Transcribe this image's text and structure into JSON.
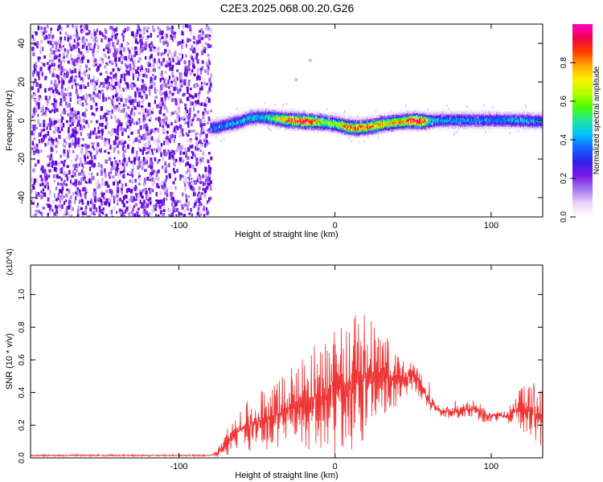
{
  "title": "C2E3.2025.068.00.20.G26",
  "chart_data": [
    {
      "type": "heatmap",
      "title": "C2E3.2025.068.00.20.G26",
      "xlabel": "Height of straight line (km)",
      "ylabel": "Frequency (Hz)",
      "xlim": [
        -195,
        133
      ],
      "ylim": [
        -50,
        50
      ],
      "x_ticks": [
        -100,
        0,
        100
      ],
      "y_ticks": [
        -40,
        -20,
        0,
        20,
        40
      ],
      "colorbar": {
        "label": "Normalized spectral amplitude",
        "range": [
          0,
          1
        ],
        "ticks": [
          0.0,
          0.2,
          0.4,
          0.6,
          0.8
        ],
        "colors": [
          "#ffffff",
          "#e9d5f7",
          "#a276f0",
          "#7a19e6",
          "#2f21e8",
          "#1463ff",
          "#00c4ff",
          "#1ee6a0",
          "#4cff00",
          "#b7ff00",
          "#ffee00",
          "#ffa600",
          "#ff3c00",
          "#f0004a",
          "#ff00c8"
        ]
      },
      "noise_region": {
        "x": [
          -195,
          -80
        ],
        "y": [
          -50,
          50
        ]
      },
      "ridge": {
        "x": [
          -80,
          -75,
          -70,
          -65,
          -60,
          -55,
          -50,
          -45,
          -40,
          -35,
          -30,
          -25,
          -20,
          -15,
          -10,
          -5,
          0,
          5,
          10,
          15,
          20,
          25,
          30,
          35,
          40,
          45,
          50,
          55,
          60,
          65,
          70,
          75,
          80,
          85,
          90,
          95,
          100,
          105,
          110,
          115,
          120,
          125,
          130,
          133
        ],
        "y": [
          -3,
          -2.5,
          -1.5,
          -0.5,
          0.5,
          2,
          2.5,
          2.5,
          2,
          1.5,
          1,
          0.8,
          0.5,
          0.2,
          0,
          -0.5,
          -1,
          -2,
          -3,
          -3,
          -2.5,
          -2,
          -1,
          -0.5,
          0,
          0.5,
          0.8,
          0.5,
          0.5,
          0.8,
          1,
          1,
          1,
          1,
          1,
          1,
          1,
          1,
          1,
          1,
          0.8,
          0.5,
          0.5,
          0.5
        ],
        "amplitude": [
          0.35,
          0.38,
          0.4,
          0.42,
          0.42,
          0.45,
          0.45,
          0.45,
          0.55,
          0.7,
          0.85,
          0.9,
          0.95,
          0.9,
          0.7,
          0.6,
          0.6,
          0.75,
          0.85,
          0.85,
          0.8,
          0.8,
          0.75,
          0.7,
          0.75,
          0.8,
          0.95,
          1.0,
          0.5,
          0.4,
          0.4,
          0.4,
          0.4,
          0.38,
          0.38,
          0.38,
          0.38,
          0.38,
          0.38,
          0.4,
          0.42,
          0.4,
          0.38,
          0.38
        ]
      }
    },
    {
      "type": "line",
      "xlabel": "Height of straight line (km)",
      "ylabel": "SNR (10 * v/v)",
      "y_scale_label": "(x10^4)",
      "xlim": [
        -195,
        133
      ],
      "ylim": [
        0,
        1.18
      ],
      "x_ticks": [
        -100,
        0,
        100
      ],
      "y_ticks": [
        0.0,
        0.2,
        0.4,
        0.6,
        0.8,
        1.0
      ],
      "series": [
        {
          "color": "#ee3333",
          "x": [
            -195,
            -180,
            -165,
            -150,
            -135,
            -120,
            -105,
            -90,
            -80,
            -75,
            -70,
            -65,
            -60,
            -55,
            -50,
            -45,
            -40,
            -35,
            -30,
            -25,
            -20,
            -15,
            -10,
            -5,
            0,
            5,
            10,
            15,
            20,
            25,
            30,
            35,
            40,
            45,
            50,
            55,
            60,
            65,
            70,
            75,
            80,
            85,
            90,
            95,
            100,
            105,
            110,
            115,
            120,
            125,
            130,
            133
          ],
          "y": [
            0.015,
            0.015,
            0.015,
            0.015,
            0.015,
            0.015,
            0.015,
            0.015,
            0.015,
            0.03,
            0.09,
            0.14,
            0.18,
            0.2,
            0.22,
            0.24,
            0.25,
            0.27,
            0.3,
            0.32,
            0.34,
            0.36,
            0.36,
            0.38,
            0.4,
            0.44,
            0.46,
            0.48,
            0.5,
            0.5,
            0.52,
            0.5,
            0.47,
            0.48,
            0.52,
            0.44,
            0.35,
            0.3,
            0.28,
            0.28,
            0.28,
            0.3,
            0.3,
            0.26,
            0.26,
            0.26,
            0.25,
            0.28,
            0.3,
            0.28,
            0.26,
            0.24
          ],
          "spread": [
            0.005,
            0.005,
            0.005,
            0.005,
            0.005,
            0.005,
            0.005,
            0.005,
            0.005,
            0.03,
            0.08,
            0.1,
            0.12,
            0.16,
            0.18,
            0.2,
            0.2,
            0.22,
            0.24,
            0.26,
            0.3,
            0.32,
            0.34,
            0.36,
            0.38,
            0.4,
            0.42,
            0.4,
            0.38,
            0.32,
            0.28,
            0.24,
            0.16,
            0.12,
            0.1,
            0.08,
            0.05,
            0.04,
            0.04,
            0.04,
            0.04,
            0.05,
            0.06,
            0.05,
            0.04,
            0.04,
            0.05,
            0.1,
            0.14,
            0.16,
            0.18,
            0.18
          ]
        }
      ]
    }
  ]
}
